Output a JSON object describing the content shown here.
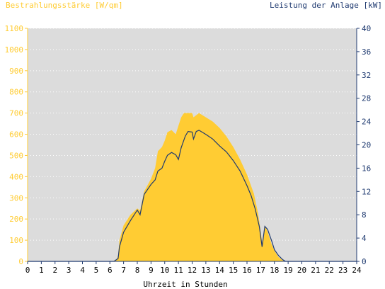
{
  "chart_data": {
    "type": "area",
    "left_axis_title": "Bestrahlungsstärke [W/qm]",
    "right_axis_title": "Leistung der Anlage [kW]",
    "xlabel": "Uhrzeit in Stunden",
    "xlim": [
      0,
      24
    ],
    "ylim_left": [
      0,
      1100
    ],
    "ylim_right": [
      0,
      40
    ],
    "x_ticks": [
      "0",
      "1",
      "2",
      "3",
      "4",
      "5",
      "6",
      "7",
      "8",
      "9",
      "10",
      "11",
      "12",
      "13",
      "14",
      "15",
      "16",
      "17",
      "18",
      "19",
      "20",
      "21",
      "22",
      "23",
      "24"
    ],
    "y_ticks_left": [
      "0",
      "100",
      "200",
      "300",
      "400",
      "500",
      "600",
      "700",
      "800",
      "900",
      "1000",
      "1100"
    ],
    "y_ticks_right": [
      "0",
      "4",
      "8",
      "12",
      "16",
      "20",
      "24",
      "28",
      "32",
      "36",
      "40"
    ],
    "colors": {
      "irradiance": "#ffcc33",
      "power": "#1f3a70",
      "plot_bg": "#dcdcdc",
      "left_axis_text": "#ffcc33",
      "right_axis_text": "#1f3a70",
      "x_axis_text": "#000000"
    },
    "series": [
      {
        "name": "Bestrahlungsstärke [W/qm]",
        "axis": "left",
        "kind": "area",
        "points": [
          [
            0,
            0
          ],
          [
            6.2,
            0
          ],
          [
            6.5,
            10
          ],
          [
            6.6,
            30
          ],
          [
            6.7,
            100
          ],
          [
            7,
            170
          ],
          [
            7.5,
            220
          ],
          [
            8,
            250
          ],
          [
            8.2,
            240
          ],
          [
            8.5,
            330
          ],
          [
            9,
            390
          ],
          [
            9.3,
            440
          ],
          [
            9.5,
            520
          ],
          [
            9.8,
            540
          ],
          [
            10,
            570
          ],
          [
            10.2,
            610
          ],
          [
            10.5,
            620
          ],
          [
            10.8,
            600
          ],
          [
            11,
            640
          ],
          [
            11.2,
            680
          ],
          [
            11.4,
            700
          ],
          [
            12,
            700
          ],
          [
            12.1,
            680
          ],
          [
            12.3,
            690
          ],
          [
            12.5,
            700
          ],
          [
            13,
            680
          ],
          [
            13.5,
            660
          ],
          [
            14,
            630
          ],
          [
            14.5,
            590
          ],
          [
            15,
            540
          ],
          [
            15.5,
            480
          ],
          [
            16,
            410
          ],
          [
            16.5,
            320
          ],
          [
            16.8,
            230
          ],
          [
            17,
            140
          ],
          [
            17.1,
            90
          ],
          [
            17.3,
            170
          ],
          [
            17.5,
            140
          ],
          [
            17.8,
            80
          ],
          [
            18,
            50
          ],
          [
            18.3,
            20
          ],
          [
            18.6,
            5
          ],
          [
            18.8,
            0
          ],
          [
            24,
            0
          ]
        ]
      },
      {
        "name": "Leistung der Anlage [kW]",
        "axis": "right",
        "kind": "line",
        "points": [
          [
            0,
            0
          ],
          [
            6.3,
            0
          ],
          [
            6.6,
            0.5
          ],
          [
            6.7,
            2.5
          ],
          [
            7,
            5
          ],
          [
            7.5,
            7
          ],
          [
            8,
            8.8
          ],
          [
            8.2,
            8
          ],
          [
            8.5,
            11.5
          ],
          [
            9,
            13.2
          ],
          [
            9.3,
            14
          ],
          [
            9.5,
            15.5
          ],
          [
            9.8,
            16
          ],
          [
            10,
            17.2
          ],
          [
            10.2,
            18.2
          ],
          [
            10.5,
            18.7
          ],
          [
            10.8,
            18.3
          ],
          [
            11,
            17.5
          ],
          [
            11.2,
            19.5
          ],
          [
            11.5,
            21.5
          ],
          [
            11.7,
            22.3
          ],
          [
            12,
            22.2
          ],
          [
            12.1,
            21
          ],
          [
            12.3,
            22.3
          ],
          [
            12.5,
            22.5
          ],
          [
            13,
            21.8
          ],
          [
            13.5,
            21
          ],
          [
            14,
            19.8
          ],
          [
            14.5,
            18.8
          ],
          [
            15,
            17.3
          ],
          [
            15.5,
            15.5
          ],
          [
            16,
            13
          ],
          [
            16.3,
            11.3
          ],
          [
            16.6,
            9
          ],
          [
            16.9,
            6
          ],
          [
            17.1,
            2.5
          ],
          [
            17.3,
            6
          ],
          [
            17.5,
            5.5
          ],
          [
            17.8,
            3.5
          ],
          [
            18,
            2
          ],
          [
            18.3,
            1
          ],
          [
            18.6,
            0.3
          ],
          [
            18.8,
            0
          ],
          [
            24,
            0
          ]
        ]
      }
    ]
  }
}
